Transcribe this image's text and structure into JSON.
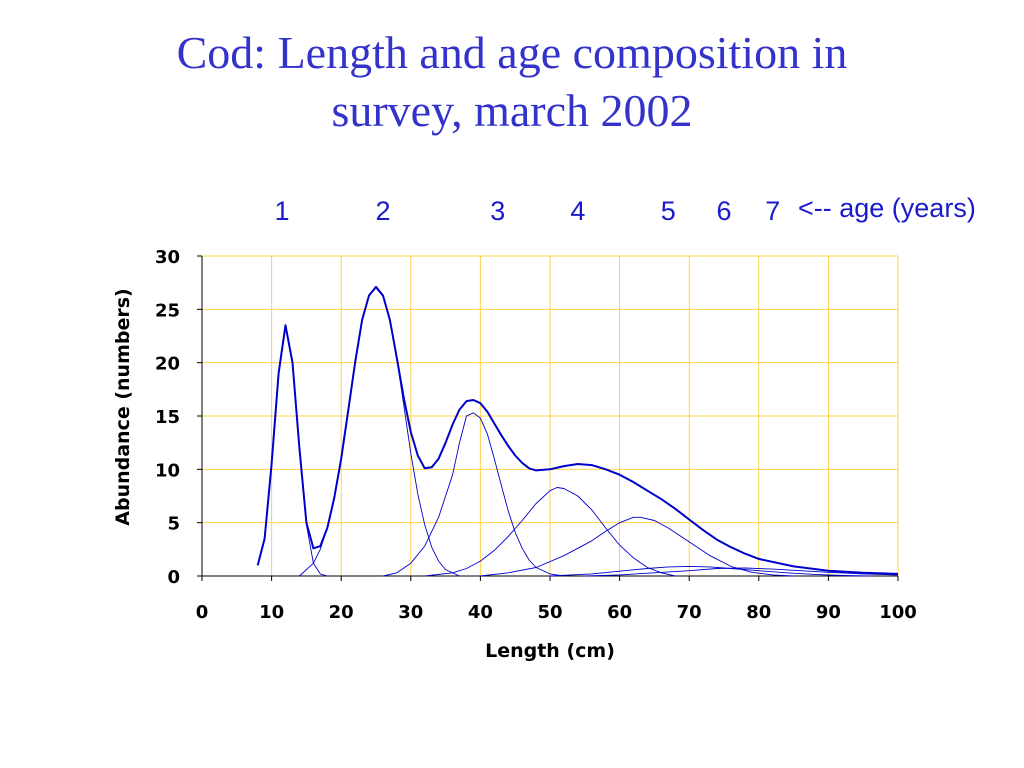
{
  "slide": {
    "title_line1": "Cod: Length and age composition in",
    "title_line2": "survey, march 2002"
  },
  "colors": {
    "title": "#3333cc",
    "age_labels": "#1a1acc",
    "curves": "#0000cc",
    "gridlines": "#ffd24d",
    "axes": "#000000"
  },
  "chart_data": {
    "type": "line",
    "title": "",
    "xlabel": "Length (cm)",
    "ylabel": "Abundance (numbers)",
    "xlim": [
      0,
      100
    ],
    "ylim": [
      0,
      30
    ],
    "xticks": [
      0,
      10,
      20,
      30,
      40,
      50,
      60,
      70,
      80,
      90,
      100
    ],
    "yticks": [
      0,
      5,
      10,
      15,
      20,
      25,
      30
    ],
    "grid": true,
    "age_header": {
      "labels": [
        "1",
        "2",
        "3",
        "4",
        "5",
        "6",
        "7"
      ],
      "label_x": [
        11.5,
        26,
        42.5,
        54,
        67,
        75,
        82
      ],
      "suffix": "<-- age (years)"
    },
    "total": {
      "name": "total",
      "points": [
        [
          8,
          1.0
        ],
        [
          9,
          3.5
        ],
        [
          10,
          10.5
        ],
        [
          11,
          19
        ],
        [
          12,
          23.5
        ],
        [
          13,
          20
        ],
        [
          14,
          12
        ],
        [
          15,
          5
        ],
        [
          16,
          2.6
        ],
        [
          17,
          2.8
        ],
        [
          18,
          4.5
        ],
        [
          19,
          7.3
        ],
        [
          20,
          11
        ],
        [
          21,
          15.5
        ],
        [
          22,
          20
        ],
        [
          23,
          24
        ],
        [
          24,
          26.3
        ],
        [
          25,
          27.1
        ],
        [
          26,
          26.3
        ],
        [
          27,
          24
        ],
        [
          28,
          20.4
        ],
        [
          29,
          16.7
        ],
        [
          30,
          13.5
        ],
        [
          31,
          11.3
        ],
        [
          32,
          10.1
        ],
        [
          33,
          10.2
        ],
        [
          34,
          11
        ],
        [
          35,
          12.5
        ],
        [
          36,
          14.2
        ],
        [
          37,
          15.6
        ],
        [
          38,
          16.4
        ],
        [
          39,
          16.5
        ],
        [
          40,
          16.2
        ],
        [
          41,
          15.4
        ],
        [
          42,
          14.3
        ],
        [
          43,
          13.2
        ],
        [
          44,
          12.2
        ],
        [
          45,
          11.3
        ],
        [
          46,
          10.6
        ],
        [
          47,
          10.1
        ],
        [
          48,
          9.9
        ],
        [
          50,
          10
        ],
        [
          52,
          10.3
        ],
        [
          54,
          10.5
        ],
        [
          56,
          10.4
        ],
        [
          58,
          10
        ],
        [
          60,
          9.5
        ],
        [
          62,
          8.8
        ],
        [
          64,
          8
        ],
        [
          66,
          7.2
        ],
        [
          68,
          6.3
        ],
        [
          70,
          5.3
        ],
        [
          72,
          4.3
        ],
        [
          74,
          3.4
        ],
        [
          76,
          2.7
        ],
        [
          78,
          2.1
        ],
        [
          80,
          1.6
        ],
        [
          85,
          0.9
        ],
        [
          90,
          0.5
        ],
        [
          95,
          0.3
        ],
        [
          100,
          0.2
        ]
      ]
    },
    "series": [
      {
        "name": "1",
        "points": [
          [
            8,
            1.0
          ],
          [
            9,
            3.5
          ],
          [
            10,
            10.5
          ],
          [
            11,
            19
          ],
          [
            12,
            23.5
          ],
          [
            13,
            20
          ],
          [
            14,
            12
          ],
          [
            15,
            4.8
          ],
          [
            16,
            1.2
          ],
          [
            17,
            0.2
          ],
          [
            18,
            0
          ]
        ]
      },
      {
        "name": "2",
        "points": [
          [
            14,
            0
          ],
          [
            16,
            1.2
          ],
          [
            17,
            2.5
          ],
          [
            18,
            4.5
          ],
          [
            19,
            7.3
          ],
          [
            20,
            11
          ],
          [
            21,
            15.5
          ],
          [
            22,
            20
          ],
          [
            23,
            24
          ],
          [
            24,
            26.3
          ],
          [
            25,
            27
          ],
          [
            26,
            26.2
          ],
          [
            27,
            24
          ],
          [
            28,
            20.3
          ],
          [
            29,
            16
          ],
          [
            30,
            11.5
          ],
          [
            31,
            7.7
          ],
          [
            32,
            4.8
          ],
          [
            33,
            2.7
          ],
          [
            34,
            1.4
          ],
          [
            35,
            0.6
          ],
          [
            37,
            0
          ]
        ]
      },
      {
        "name": "3",
        "points": [
          [
            26,
            0
          ],
          [
            28,
            0.3
          ],
          [
            30,
            1.2
          ],
          [
            32,
            2.8
          ],
          [
            34,
            5.5
          ],
          [
            36,
            9.5
          ],
          [
            37,
            12.5
          ],
          [
            38,
            15
          ],
          [
            39,
            15.3
          ],
          [
            40,
            14.8
          ],
          [
            41,
            13.3
          ],
          [
            42,
            11
          ],
          [
            43,
            8.5
          ],
          [
            44,
            6.1
          ],
          [
            45,
            4.1
          ],
          [
            46,
            2.6
          ],
          [
            47,
            1.5
          ],
          [
            48,
            0.8
          ],
          [
            50,
            0.2
          ],
          [
            52,
            0
          ]
        ]
      },
      {
        "name": "4",
        "points": [
          [
            32,
            0
          ],
          [
            36,
            0.3
          ],
          [
            38,
            0.7
          ],
          [
            40,
            1.4
          ],
          [
            42,
            2.4
          ],
          [
            44,
            3.7
          ],
          [
            46,
            5.2
          ],
          [
            48,
            6.8
          ],
          [
            50,
            8
          ],
          [
            51,
            8.3
          ],
          [
            52,
            8.2
          ],
          [
            54,
            7.5
          ],
          [
            56,
            6.2
          ],
          [
            58,
            4.5
          ],
          [
            60,
            2.9
          ],
          [
            62,
            1.7
          ],
          [
            64,
            0.8
          ],
          [
            66,
            0.3
          ],
          [
            68,
            0
          ]
        ]
      },
      {
        "name": "5",
        "points": [
          [
            40,
            0
          ],
          [
            44,
            0.3
          ],
          [
            48,
            0.8
          ],
          [
            52,
            1.9
          ],
          [
            56,
            3.3
          ],
          [
            58,
            4.2
          ],
          [
            60,
            5
          ],
          [
            62,
            5.5
          ],
          [
            63,
            5.5
          ],
          [
            65,
            5.2
          ],
          [
            67,
            4.5
          ],
          [
            70,
            3.2
          ],
          [
            73,
            1.9
          ],
          [
            76,
            0.9
          ],
          [
            79,
            0.35
          ],
          [
            82,
            0.1
          ],
          [
            85,
            0
          ]
        ]
      },
      {
        "name": "6",
        "points": [
          [
            50,
            0
          ],
          [
            56,
            0.2
          ],
          [
            60,
            0.45
          ],
          [
            64,
            0.7
          ],
          [
            67,
            0.85
          ],
          [
            70,
            0.9
          ],
          [
            73,
            0.85
          ],
          [
            76,
            0.7
          ],
          [
            80,
            0.5
          ],
          [
            84,
            0.3
          ],
          [
            88,
            0.15
          ],
          [
            92,
            0.05
          ],
          [
            96,
            0
          ]
        ]
      },
      {
        "name": "7",
        "points": [
          [
            55,
            0
          ],
          [
            60,
            0.1
          ],
          [
            65,
            0.3
          ],
          [
            70,
            0.5
          ],
          [
            74,
            0.7
          ],
          [
            78,
            0.75
          ],
          [
            82,
            0.65
          ],
          [
            86,
            0.5
          ],
          [
            90,
            0.35
          ],
          [
            95,
            0.2
          ],
          [
            100,
            0.1
          ]
        ]
      }
    ]
  }
}
